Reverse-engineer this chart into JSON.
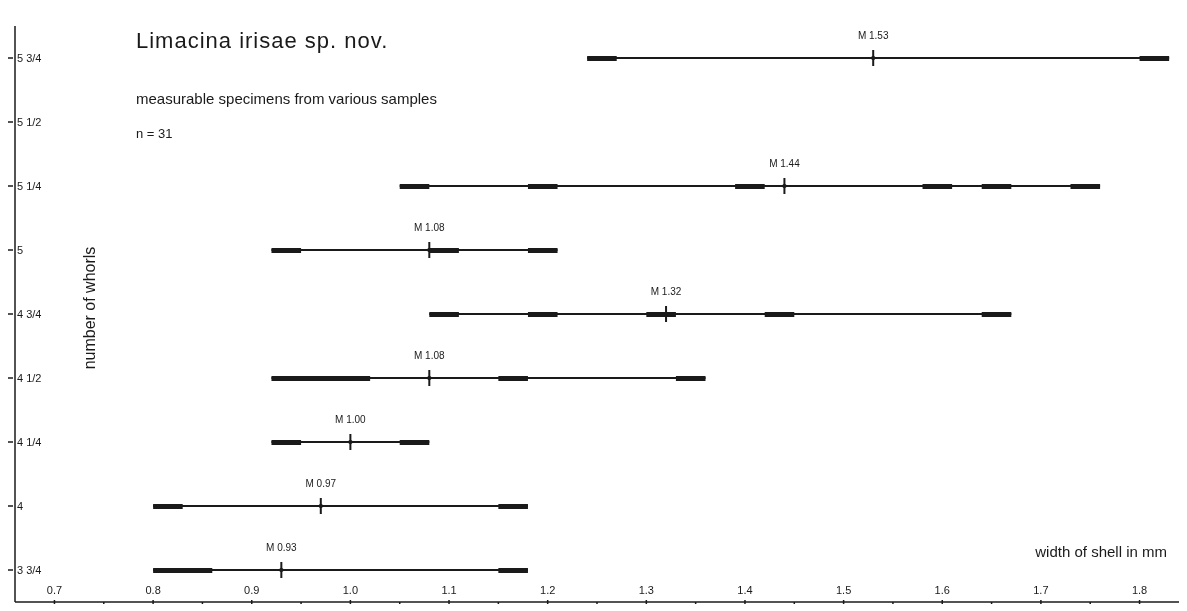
{
  "chart_data": {
    "type": "bar",
    "orientation": "horizontal",
    "title": "Limacina irisae sp. nov.",
    "subtitle": "measurable specimens from various samples",
    "annotations": [
      "n = 31"
    ],
    "xlabel": "width of shell in mm",
    "ylabel": "number of whorls",
    "categories": [
      "5 3/4",
      "5 1/2",
      "5 1/4",
      "5",
      "4 3/4",
      "4 1/2",
      "4 1/4",
      "4",
      "3 3/4"
    ],
    "xlim": [
      0.66,
      1.84
    ],
    "xticks": [
      0.7,
      {
        "value": 0.75,
        "label": null
      },
      0.8,
      {
        "value": 0.85,
        "label": null
      },
      0.9,
      {
        "value": 0.95,
        "label": null
      },
      {
        "value": 1,
        "label": "1.0"
      },
      {
        "value": 1.05,
        "label": null
      },
      1.1,
      {
        "value": 1.15,
        "label": null
      },
      1.2,
      {
        "value": 1.25,
        "label": null
      },
      1.3,
      {
        "value": 1.35,
        "label": null
      },
      1.4,
      {
        "value": 1.45,
        "label": null
      },
      1.5,
      {
        "value": 1.55,
        "label": null
      },
      1.6,
      {
        "value": 1.65,
        "label": null
      },
      1.7,
      {
        "value": 1.75,
        "label": null
      },
      1.8
    ],
    "series": [
      {
        "type": "bar",
        "color": "#1a1a1a",
        "base": [
          1.24,
          null,
          1.05,
          0.92,
          1.08,
          0.92,
          0.92,
          0.8,
          0.8
        ],
        "values": [
          0.59,
          null,
          0.71,
          0.29,
          0.59,
          0.44,
          0.16,
          0.38,
          0.38
        ]
      },
      {
        "color": "#1a1a1a",
        "base": [
          1.24,
          null,
          1.05,
          0.92,
          1.08,
          0.92,
          0.92,
          0.8,
          0.8
        ],
        "values": [
          0.03,
          null,
          0.03,
          0.03,
          0.03,
          0.1,
          0.03,
          0.03,
          0.06
        ]
      },
      {
        "type": "bar",
        "color": "#1a1a1a",
        "base": [
          1.8,
          null,
          1.18,
          1.08,
          1.18,
          1.15,
          1.05,
          1.15,
          1.15
        ],
        "values": [
          0.03,
          null,
          0.03,
          0.03,
          0.03,
          0.03,
          0.03,
          0.03,
          0.03
        ]
      },
      {
        "type": "bar",
        "color": "#1a1a1a",
        "base": [
          null,
          null,
          1.39,
          1.18,
          1.3,
          1.33,
          null,
          null,
          null
        ],
        "values": [
          null,
          null,
          0.03,
          0.03,
          0.03,
          0.03,
          null,
          null,
          null
        ]
      },
      {
        "type": "bar",
        "color": "#1a1a1a",
        "base": [
          null,
          null,
          1.58,
          null,
          1.42,
          null,
          null,
          null,
          null
        ],
        "values": [
          null,
          null,
          0.03,
          null,
          0.03,
          null,
          null,
          null,
          null
        ]
      },
      {
        "type": "bar",
        "color": "#1a1a1a",
        "base": [
          null,
          null,
          1.64,
          null,
          1.64,
          null,
          null,
          null,
          null
        ],
        "values": [
          null,
          null,
          0.03,
          null,
          0.03,
          null,
          null,
          null,
          null
        ]
      },
      {
        "type": "bar",
        "color": "#1a1a1a",
        "base": [
          null,
          null,
          1.73,
          null,
          null,
          null,
          null,
          null,
          null
        ],
        "values": [
          null,
          null,
          0.03,
          null,
          null,
          null,
          null,
          null,
          null
        ]
      },
      {
        "type": "scatter",
        "color": "#1a1a1a",
        "values": [
          1.53,
          null,
          1.44,
          1.08,
          1.32,
          1.08,
          1.0,
          0.97,
          0.93
        ],
        "value_labels": [
          "M 1.53",
          null,
          "M 1.44",
          "M 1.08",
          "M 1.32",
          "M 1.08",
          "M 1.00",
          "M 0.97",
          "M 0.93"
        ]
      }
    ]
  }
}
